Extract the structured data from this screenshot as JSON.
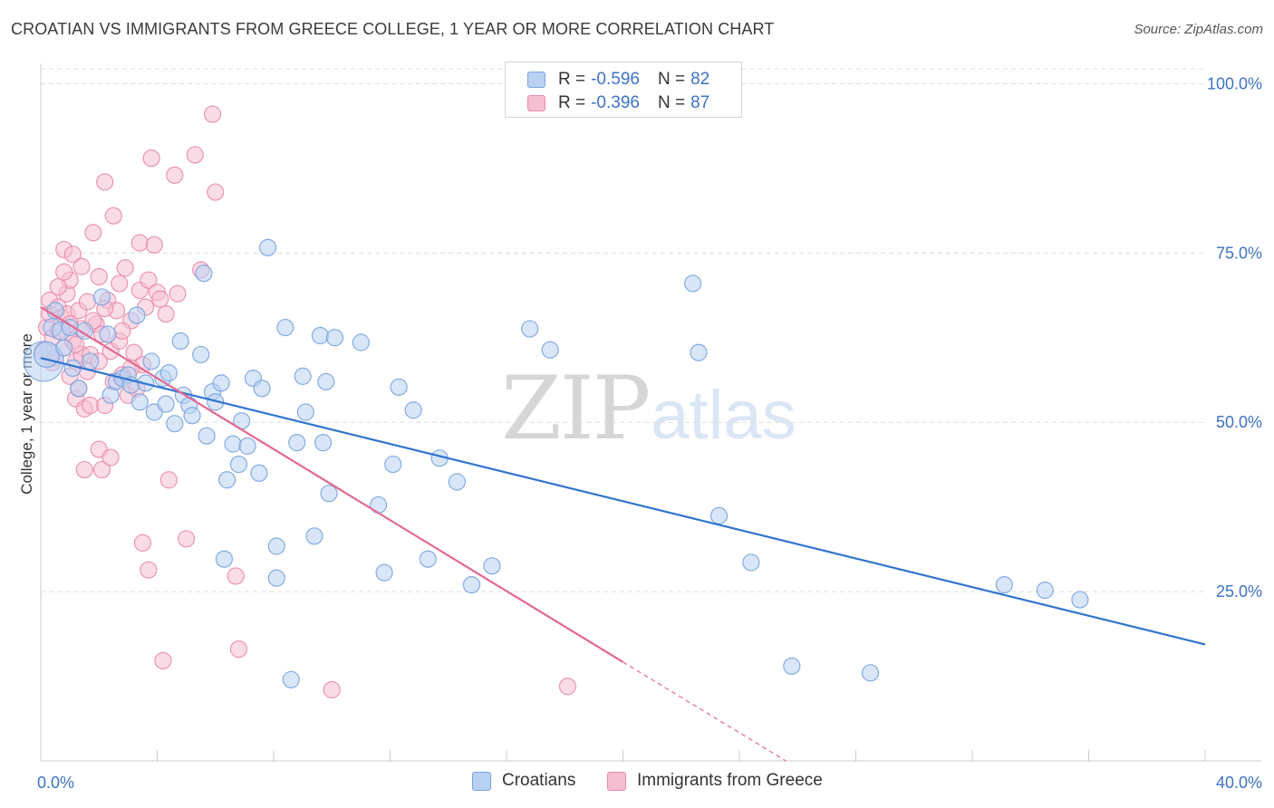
{
  "title": "CROATIAN VS IMMIGRANTS FROM GREECE COLLEGE, 1 YEAR OR MORE CORRELATION CHART",
  "source": "Source: ZipAtlas.com",
  "watermark": {
    "zip": "ZIP",
    "atlas": "atlas"
  },
  "legend": {
    "series": [
      {
        "r_label": "R =",
        "r_value": "-0.596",
        "n_label": "N =",
        "n_value": "82"
      },
      {
        "r_label": "R =",
        "r_value": "-0.396",
        "n_label": "N =",
        "n_value": "87"
      }
    ]
  },
  "bottom_legend": [
    "Croatians",
    "Immigrants from Greece"
  ],
  "colors": {
    "blue_fill": "#b8d1f2",
    "blue_stroke": "#7aa3de",
    "blue_line": "#2f74d0",
    "pink_fill": "#f6bfd1",
    "pink_stroke": "#e98aab",
    "pink_line": "#e2688f",
    "grid": "#dddddd",
    "axis": "#cccccc",
    "tick_text": "#3d72c4"
  },
  "chart_data": {
    "type": "scatter",
    "title": "CROATIAN VS IMMIGRANTS FROM GREECE COLLEGE, 1 YEAR OR MORE CORRELATION CHART",
    "xlabel": "",
    "ylabel": "College, 1 year or more",
    "xlim": [
      0,
      40
    ],
    "ylim": [
      0,
      103
    ],
    "x_tick_labels": [
      {
        "value": 0,
        "label": "0.0%"
      },
      {
        "value": 40,
        "label": "40.0%"
      }
    ],
    "x_minor_ticks": [
      4,
      8,
      12,
      16,
      20,
      24,
      28,
      32,
      36,
      40
    ],
    "y_ticks": [
      {
        "value": 25,
        "label": "25.0%"
      },
      {
        "value": 50,
        "label": "50.0%"
      },
      {
        "value": 75,
        "label": "75.0%"
      },
      {
        "value": 100,
        "label": "100.0%"
      }
    ],
    "grid": true,
    "series": [
      {
        "name": "Croatians",
        "r": -0.596,
        "n": 82,
        "trend": {
          "x0": 0,
          "y0": 59.5,
          "x1": 40,
          "y1": 17.2
        },
        "points": [
          [
            0.1,
            59.0,
            22
          ],
          [
            0.2,
            60.0,
            14
          ],
          [
            0.4,
            64.0,
            10
          ],
          [
            0.5,
            66.5,
            9
          ],
          [
            0.7,
            63.5,
            10
          ],
          [
            0.8,
            61.0,
            9
          ],
          [
            1.0,
            64.0,
            9
          ],
          [
            1.1,
            58.0,
            9
          ],
          [
            1.3,
            55.0,
            9
          ],
          [
            1.5,
            63.5,
            9
          ],
          [
            1.7,
            59.0,
            9
          ],
          [
            2.1,
            68.5,
            9
          ],
          [
            2.3,
            63.0,
            9
          ],
          [
            2.4,
            54.0,
            9
          ],
          [
            2.6,
            56.0,
            9
          ],
          [
            2.8,
            56.5,
            9
          ],
          [
            3.0,
            57.0,
            9
          ],
          [
            3.1,
            55.5,
            9
          ],
          [
            3.3,
            65.8,
            9
          ],
          [
            3.4,
            53.0,
            9
          ],
          [
            3.6,
            55.8,
            9
          ],
          [
            3.8,
            59.0,
            9
          ],
          [
            3.9,
            51.5,
            9
          ],
          [
            4.2,
            56.5,
            9
          ],
          [
            4.3,
            52.7,
            9
          ],
          [
            4.4,
            57.3,
            9
          ],
          [
            4.6,
            49.8,
            9
          ],
          [
            4.8,
            62.0,
            9
          ],
          [
            4.9,
            54.0,
            9
          ],
          [
            5.1,
            52.5,
            9
          ],
          [
            5.2,
            51.0,
            9
          ],
          [
            5.5,
            60.0,
            9
          ],
          [
            5.6,
            72.0,
            9
          ],
          [
            5.7,
            48.0,
            9
          ],
          [
            5.9,
            54.5,
            9
          ],
          [
            6.0,
            53.0,
            9
          ],
          [
            6.2,
            55.8,
            9
          ],
          [
            6.4,
            41.5,
            9
          ],
          [
            6.6,
            46.8,
            9
          ],
          [
            6.8,
            43.8,
            9
          ],
          [
            6.9,
            50.2,
            9
          ],
          [
            7.1,
            46.5,
            9
          ],
          [
            7.3,
            56.5,
            9
          ],
          [
            7.5,
            42.5,
            9
          ],
          [
            7.6,
            55.0,
            9
          ],
          [
            7.8,
            75.8,
            9
          ],
          [
            8.1,
            31.7,
            9
          ],
          [
            8.1,
            27.0,
            9
          ],
          [
            8.4,
            64.0,
            9
          ],
          [
            8.6,
            12.0,
            9
          ],
          [
            8.8,
            47.0,
            9
          ],
          [
            9.0,
            56.8,
            9
          ],
          [
            9.1,
            51.5,
            9
          ],
          [
            9.4,
            33.2,
            9
          ],
          [
            9.6,
            62.8,
            9
          ],
          [
            9.7,
            47.0,
            9
          ],
          [
            9.9,
            39.5,
            9
          ],
          [
            10.1,
            62.5,
            9
          ],
          [
            11.0,
            61.8,
            9
          ],
          [
            11.6,
            37.8,
            9
          ],
          [
            11.8,
            27.8,
            9
          ],
          [
            12.1,
            43.8,
            9
          ],
          [
            12.3,
            55.2,
            9
          ],
          [
            12.8,
            51.8,
            9
          ],
          [
            13.3,
            29.8,
            9
          ],
          [
            13.7,
            44.7,
            9
          ],
          [
            14.3,
            41.2,
            9
          ],
          [
            14.8,
            26.0,
            9
          ],
          [
            15.5,
            28.8,
            9
          ],
          [
            16.8,
            63.8,
            9
          ],
          [
            17.5,
            60.7,
            9
          ],
          [
            22.4,
            70.5,
            9
          ],
          [
            22.6,
            60.3,
            9
          ],
          [
            23.3,
            36.2,
            9
          ],
          [
            24.4,
            29.3,
            9
          ],
          [
            25.8,
            14.0,
            9
          ],
          [
            28.5,
            13.0,
            9
          ],
          [
            33.1,
            26.0,
            9
          ],
          [
            34.5,
            25.2,
            9
          ],
          [
            35.7,
            23.8,
            9
          ],
          [
            6.3,
            29.8,
            9
          ],
          [
            9.8,
            56.0,
            9
          ]
        ]
      },
      {
        "name": "Immigrants from Greece",
        "r": -0.396,
        "n": 87,
        "trend": {
          "x0": 0,
          "y0": 67.0,
          "x1": 20,
          "y1": 14.6
        },
        "trend_ext": {
          "x0": 20,
          "y0": 14.6,
          "x1": 25.6,
          "y1": 0
        },
        "points": [
          [
            0.1,
            60.5,
            10
          ],
          [
            0.2,
            64.0,
            9
          ],
          [
            0.3,
            66.0,
            9
          ],
          [
            0.3,
            68.0,
            9
          ],
          [
            0.4,
            62.5,
            9
          ],
          [
            0.5,
            59.5,
            9
          ],
          [
            0.6,
            63.5,
            9
          ],
          [
            0.6,
            67.0,
            9
          ],
          [
            0.7,
            65.5,
            9
          ],
          [
            0.8,
            61.0,
            9
          ],
          [
            0.8,
            75.5,
            9
          ],
          [
            0.9,
            66.0,
            9
          ],
          [
            0.9,
            69.0,
            9
          ],
          [
            1.0,
            64.5,
            9
          ],
          [
            1.0,
            71.0,
            9
          ],
          [
            1.1,
            62.0,
            9
          ],
          [
            1.1,
            74.8,
            9
          ],
          [
            1.2,
            59.0,
            9
          ],
          [
            1.2,
            53.5,
            9
          ],
          [
            1.3,
            66.5,
            9
          ],
          [
            1.3,
            55.0,
            9
          ],
          [
            1.4,
            60.0,
            9
          ],
          [
            1.4,
            73.0,
            9
          ],
          [
            1.5,
            43.0,
            9
          ],
          [
            1.5,
            52.0,
            9
          ],
          [
            1.6,
            57.5,
            9
          ],
          [
            1.7,
            52.5,
            9
          ],
          [
            1.7,
            60.0,
            9
          ],
          [
            1.8,
            78.0,
            9
          ],
          [
            1.9,
            64.5,
            9
          ],
          [
            2.0,
            46.0,
            9
          ],
          [
            2.0,
            71.5,
            9
          ],
          [
            2.1,
            43.0,
            9
          ],
          [
            2.1,
            63.0,
            9
          ],
          [
            2.2,
            85.5,
            9
          ],
          [
            2.2,
            52.5,
            9
          ],
          [
            2.3,
            68.0,
            9
          ],
          [
            2.4,
            60.5,
            9
          ],
          [
            2.4,
            44.8,
            9
          ],
          [
            2.5,
            80.5,
            9
          ],
          [
            2.6,
            66.5,
            9
          ],
          [
            2.7,
            70.5,
            9
          ],
          [
            2.7,
            62.0,
            9
          ],
          [
            2.8,
            57.0,
            9
          ],
          [
            2.9,
            72.8,
            9
          ],
          [
            3.0,
            54.0,
            9
          ],
          [
            3.1,
            65.0,
            9
          ],
          [
            3.2,
            60.3,
            9
          ],
          [
            3.3,
            55.0,
            9
          ],
          [
            3.4,
            69.5,
            9
          ],
          [
            3.4,
            76.5,
            9
          ],
          [
            3.5,
            58.5,
            9
          ],
          [
            3.5,
            32.2,
            9
          ],
          [
            3.6,
            67.0,
            9
          ],
          [
            3.7,
            28.2,
            9
          ],
          [
            3.7,
            71.0,
            9
          ],
          [
            3.8,
            89.0,
            9
          ],
          [
            3.9,
            76.2,
            9
          ],
          [
            4.0,
            69.2,
            9
          ],
          [
            4.1,
            68.2,
            9
          ],
          [
            4.2,
            14.8,
            9
          ],
          [
            4.3,
            66.0,
            9
          ],
          [
            4.4,
            41.5,
            9
          ],
          [
            4.6,
            86.5,
            9
          ],
          [
            4.7,
            69.0,
            9
          ],
          [
            5.0,
            32.8,
            9
          ],
          [
            5.3,
            89.5,
            9
          ],
          [
            5.5,
            72.5,
            9
          ],
          [
            5.9,
            95.5,
            9
          ],
          [
            6.0,
            84.0,
            9
          ],
          [
            6.7,
            27.3,
            9
          ],
          [
            6.8,
            16.5,
            9
          ],
          [
            10.0,
            10.5,
            9
          ],
          [
            18.1,
            11.0,
            9
          ],
          [
            0.4,
            58.8,
            9
          ],
          [
            0.6,
            70.0,
            9
          ],
          [
            0.8,
            72.2,
            9
          ],
          [
            1.0,
            56.8,
            9
          ],
          [
            1.2,
            61.5,
            9
          ],
          [
            1.4,
            63.8,
            9
          ],
          [
            1.6,
            67.8,
            9
          ],
          [
            1.8,
            65.0,
            9
          ],
          [
            2.0,
            59.0,
            9
          ],
          [
            2.2,
            66.8,
            9
          ],
          [
            2.5,
            56.0,
            9
          ],
          [
            2.8,
            63.5,
            9
          ],
          [
            3.1,
            58.0,
            9
          ]
        ]
      }
    ]
  }
}
